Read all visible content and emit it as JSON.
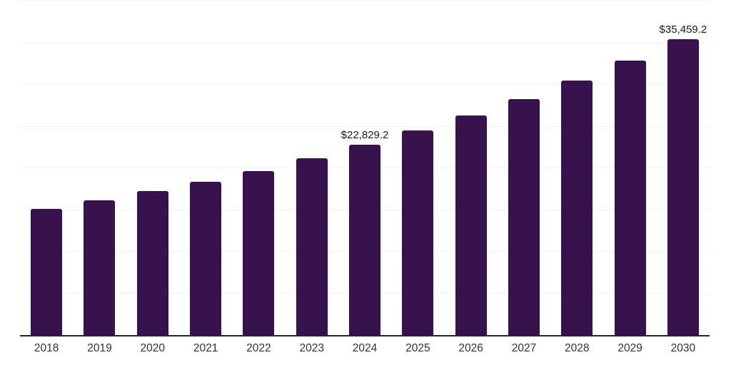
{
  "chart_data": {
    "type": "bar",
    "title": "",
    "categories": [
      "2018",
      "2019",
      "2020",
      "2021",
      "2022",
      "2023",
      "2024",
      "2025",
      "2026",
      "2027",
      "2028",
      "2029",
      "2030"
    ],
    "values": [
      15140,
      16140,
      17280,
      18420,
      19620,
      21180,
      22829.2,
      24490,
      26330,
      28330,
      30490,
      32940,
      35459.2
    ],
    "data_labels": [
      "",
      "",
      "",
      "",
      "",
      "",
      "$22,829.2",
      "",
      "",
      "",
      "",
      "",
      "$35,459.2"
    ],
    "xlabel": "",
    "ylabel": "",
    "ylim": [
      0,
      40000
    ],
    "gridline_interval": 5000,
    "grid": true,
    "legend": "none",
    "colors": {
      "bar": "#36114E",
      "gridline": "#f2f2f2",
      "axis": "#262626",
      "value_label_text": "#1a1a1a",
      "tick_label_text": "#333333",
      "background": "#ffffff"
    }
  }
}
